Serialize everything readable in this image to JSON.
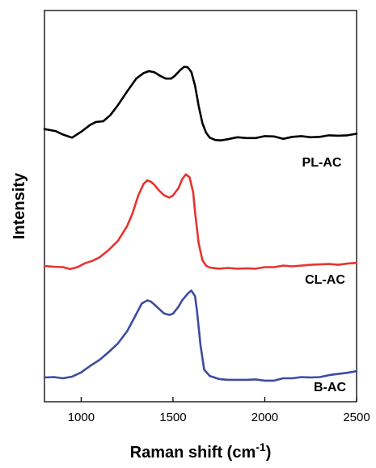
{
  "chart_data": {
    "type": "line",
    "xlabel": "Raman shift (cm",
    "xlabel_sup": "-1",
    "xlabel_end": ")",
    "ylabel": "Intensity",
    "xlim": [
      800,
      2500
    ],
    "ylim": [
      0,
      1
    ],
    "y_ticks_shown": false,
    "grid": false,
    "xticks": [
      1000,
      1500,
      2000,
      2500
    ],
    "series": [
      {
        "name": "PL-AC",
        "color": "#000000",
        "x": [
          800,
          860,
          900,
          950,
          1000,
          1050,
          1080,
          1120,
          1160,
          1200,
          1250,
          1300,
          1340,
          1370,
          1400,
          1430,
          1460,
          1490,
          1510,
          1540,
          1560,
          1580,
          1600,
          1620,
          1640,
          1660,
          1680,
          1700,
          1730,
          1760,
          1800,
          1850,
          1900,
          1950,
          2000,
          2050,
          2100,
          2150,
          2200,
          2250,
          2300,
          2350,
          2400,
          2450,
          2500
        ],
        "y": [
          0.697,
          0.692,
          0.683,
          0.675,
          0.69,
          0.708,
          0.715,
          0.717,
          0.733,
          0.758,
          0.793,
          0.826,
          0.84,
          0.845,
          0.842,
          0.833,
          0.826,
          0.826,
          0.833,
          0.848,
          0.856,
          0.855,
          0.843,
          0.808,
          0.756,
          0.712,
          0.688,
          0.675,
          0.669,
          0.668,
          0.671,
          0.676,
          0.674,
          0.674,
          0.679,
          0.678,
          0.672,
          0.677,
          0.679,
          0.676,
          0.677,
          0.681,
          0.68,
          0.681,
          0.685
        ]
      },
      {
        "name": "CL-AC",
        "color": "#e8332f",
        "x": [
          800,
          850,
          900,
          940,
          980,
          1020,
          1060,
          1100,
          1150,
          1200,
          1250,
          1280,
          1310,
          1340,
          1360,
          1380,
          1400,
          1420,
          1450,
          1480,
          1500,
          1530,
          1550,
          1570,
          1590,
          1610,
          1620,
          1640,
          1660,
          1680,
          1700,
          1750,
          1800,
          1850,
          1900,
          1950,
          2000,
          2050,
          2100,
          2150,
          2200,
          2250,
          2300,
          2350,
          2400,
          2450,
          2500
        ],
        "y": [
          0.347,
          0.345,
          0.344,
          0.339,
          0.344,
          0.354,
          0.36,
          0.369,
          0.388,
          0.411,
          0.449,
          0.482,
          0.526,
          0.557,
          0.566,
          0.562,
          0.554,
          0.542,
          0.528,
          0.522,
          0.527,
          0.546,
          0.569,
          0.581,
          0.574,
          0.535,
          0.485,
          0.405,
          0.362,
          0.348,
          0.343,
          0.34,
          0.342,
          0.34,
          0.341,
          0.34,
          0.344,
          0.344,
          0.348,
          0.346,
          0.348,
          0.35,
          0.351,
          0.352,
          0.35,
          0.353,
          0.355
        ]
      },
      {
        "name": "B-AC",
        "color": "#3c4da0",
        "x": [
          800,
          850,
          900,
          950,
          1000,
          1050,
          1100,
          1150,
          1200,
          1250,
          1300,
          1330,
          1360,
          1380,
          1400,
          1420,
          1450,
          1480,
          1500,
          1530,
          1550,
          1580,
          1600,
          1620,
          1630,
          1650,
          1670,
          1700,
          1750,
          1800,
          1850,
          1900,
          1950,
          2000,
          2050,
          2100,
          2150,
          2200,
          2250,
          2300,
          2350,
          2400,
          2450,
          2500
        ],
        "y": [
          0.062,
          0.063,
          0.06,
          0.064,
          0.075,
          0.092,
          0.107,
          0.127,
          0.149,
          0.18,
          0.224,
          0.251,
          0.259,
          0.256,
          0.248,
          0.239,
          0.226,
          0.222,
          0.225,
          0.243,
          0.259,
          0.276,
          0.284,
          0.27,
          0.234,
          0.144,
          0.082,
          0.066,
          0.058,
          0.056,
          0.056,
          0.056,
          0.057,
          0.054,
          0.054,
          0.06,
          0.06,
          0.063,
          0.062,
          0.063,
          0.068,
          0.071,
          0.074,
          0.078
        ]
      }
    ],
    "series_labels": [
      {
        "text": "PL-AC",
        "series": "PL-AC"
      },
      {
        "text": "CL-AC",
        "series": "CL-AC"
      },
      {
        "text": "B-AC",
        "series": "B-AC"
      }
    ]
  }
}
